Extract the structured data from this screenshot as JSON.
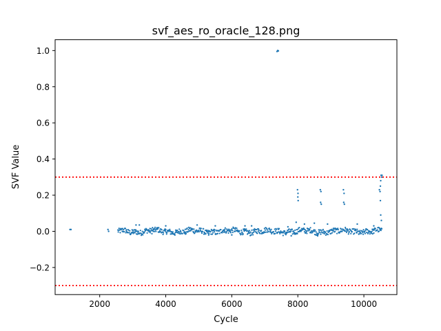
{
  "chart_data": {
    "type": "scatter",
    "title": "svf_aes_ro_oracle_128.png",
    "xlabel": "Cycle",
    "ylabel": "SVF Value",
    "xlim": [
      650,
      11000
    ],
    "ylim": [
      -0.35,
      1.06
    ],
    "xticks": [
      2000,
      4000,
      6000,
      8000,
      10000
    ],
    "xtick_labels": [
      "2000",
      "4000",
      "6000",
      "8000",
      "10000"
    ],
    "yticks": [
      -0.2,
      0.0,
      0.2,
      0.4,
      0.6,
      0.8,
      1.0
    ],
    "ytick_labels": [
      "−0.2",
      "0.0",
      "0.2",
      "0.4",
      "0.6",
      "0.8",
      "1.0"
    ],
    "grid": false,
    "thresholds": [
      0.3,
      -0.3
    ],
    "threshold_style": "dotted",
    "colors": {
      "points": "#1f77b4",
      "threshold": "#ff0000"
    },
    "series": [
      {
        "points": [
          [
            1100,
            0.01
          ],
          [
            1130,
            0.01
          ],
          [
            2250,
            0.01
          ],
          [
            2270,
            0.0
          ],
          [
            7370,
            0.995
          ],
          [
            7390,
            1.0
          ],
          [
            7410,
            0.998
          ],
          [
            7990,
            0.23
          ],
          [
            8000,
            0.19
          ],
          [
            8010,
            0.17
          ],
          [
            8005,
            0.21
          ],
          [
            8680,
            0.23
          ],
          [
            8700,
            0.22
          ],
          [
            8690,
            0.16
          ],
          [
            8710,
            0.15
          ],
          [
            9380,
            0.23
          ],
          [
            9400,
            0.21
          ],
          [
            9390,
            0.16
          ],
          [
            9410,
            0.15
          ],
          [
            10470,
            0.23
          ],
          [
            10490,
            0.22
          ],
          [
            10500,
            0.25
          ],
          [
            10510,
            0.28
          ],
          [
            10520,
            0.31
          ],
          [
            10540,
            0.3
          ],
          [
            10550,
            0.31
          ],
          [
            10500,
            0.17
          ],
          [
            10510,
            0.09
          ],
          [
            10530,
            0.06
          ],
          [
            3100,
            0.035
          ],
          [
            3200,
            0.035
          ],
          [
            3600,
            0.02
          ],
          [
            4000,
            0.03
          ],
          [
            4950,
            0.035
          ],
          [
            5500,
            0.03
          ],
          [
            6400,
            0.03
          ],
          [
            6600,
            0.03
          ],
          [
            7700,
            0.025
          ],
          [
            7950,
            0.05
          ],
          [
            8200,
            0.04
          ],
          [
            8500,
            0.045
          ],
          [
            8600,
            -0.025
          ],
          [
            8900,
            0.04
          ],
          [
            9800,
            0.04
          ],
          [
            10300,
            0.03
          ],
          [
            7800,
            -0.025
          ],
          [
            5300,
            -0.02
          ],
          [
            4600,
            -0.015
          ],
          [
            6000,
            -0.02
          ]
        ]
      }
    ],
    "band": {
      "x_range": [
        2550,
        10550
      ],
      "center": 0.0,
      "spread": 0.015
    }
  }
}
